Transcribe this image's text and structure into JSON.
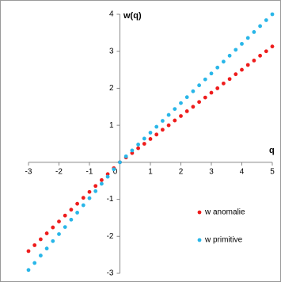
{
  "chart_data": {
    "type": "scatter",
    "xlabel": "q",
    "ylabel": "w(q)",
    "x": [
      -3,
      -2.8,
      -2.6,
      -2.4,
      -2.2,
      -2,
      -1.8,
      -1.6,
      -1.4,
      -1.2,
      -1,
      -0.8,
      -0.6,
      -0.4,
      -0.2,
      0,
      0.2,
      0.4,
      0.6,
      0.8,
      1,
      1.2,
      1.4,
      1.6,
      1.8,
      2,
      2.2,
      2.4,
      2.6,
      2.8,
      3,
      3.2,
      3.4,
      3.6,
      3.8,
      4,
      4.2,
      4.4,
      4.6,
      4.8,
      5
    ],
    "series": [
      {
        "name": "w anomalie",
        "color": "#ee1c1c",
        "values": [
          -2.4,
          -2.24,
          -2.08,
          -1.92,
          -1.76,
          -1.6,
          -1.44,
          -1.28,
          -1.12,
          -0.96,
          -0.8,
          -0.64,
          -0.48,
          -0.32,
          -0.16,
          0,
          0.13,
          0.25,
          0.38,
          0.5,
          0.63,
          0.75,
          0.88,
          1,
          1.13,
          1.25,
          1.38,
          1.5,
          1.63,
          1.75,
          1.88,
          2,
          2.13,
          2.25,
          2.38,
          2.5,
          2.63,
          2.75,
          2.88,
          3,
          3.13
        ]
      },
      {
        "name": "w primitive",
        "color": "#29b6e8",
        "values": [
          -2.91,
          -2.72,
          -2.52,
          -2.33,
          -2.13,
          -1.94,
          -1.75,
          -1.55,
          -1.36,
          -1.16,
          -0.97,
          -0.78,
          -0.58,
          -0.39,
          -0.19,
          0,
          0.16,
          0.32,
          0.48,
          0.64,
          0.8,
          0.96,
          1.12,
          1.28,
          1.44,
          1.6,
          1.76,
          1.92,
          2.08,
          2.24,
          2.4,
          2.56,
          2.72,
          2.88,
          3.04,
          3.2,
          3.36,
          3.52,
          3.68,
          3.84,
          4.0
        ]
      }
    ],
    "xlim": [
      -3,
      5
    ],
    "xticks": [
      -3,
      -2,
      -1,
      0,
      1,
      2,
      3,
      4,
      5
    ],
    "ylim": [
      -3,
      4
    ],
    "yticks": [
      -3,
      -2,
      -1,
      0,
      1,
      2,
      3,
      4
    ],
    "legend": "right"
  }
}
